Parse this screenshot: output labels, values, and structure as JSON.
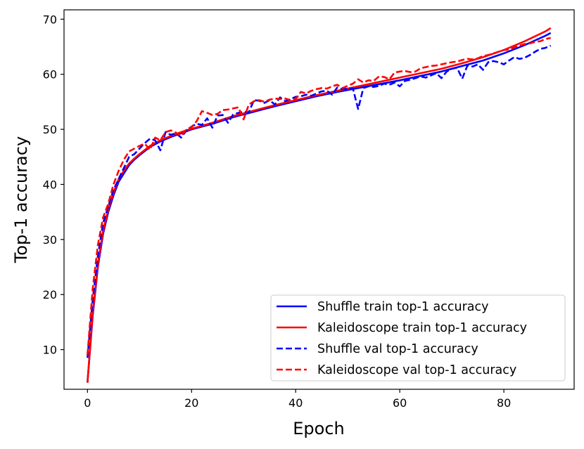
{
  "chart_data": {
    "type": "line",
    "title": "",
    "xlabel": "Epoch",
    "ylabel": "Top-1 accuracy",
    "xlim": [
      -4.5,
      93.5
    ],
    "ylim": [
      2.8,
      71.7
    ],
    "xticks": [
      0,
      20,
      40,
      60,
      80
    ],
    "yticks": [
      10,
      20,
      30,
      40,
      50,
      60,
      70
    ],
    "grid": false,
    "legend_position": "lower-right",
    "series": [
      {
        "name": "Shuffle train top-1 accuracy",
        "color": "#0000ff",
        "style": "solid",
        "x": [
          0,
          1,
          2,
          3,
          4,
          5,
          6,
          7,
          8,
          9,
          10,
          12,
          14,
          16,
          18,
          20,
          24,
          28,
          32,
          36,
          40,
          44,
          48,
          52,
          56,
          60,
          64,
          68,
          72,
          76,
          80,
          84,
          88,
          89
        ],
        "y": [
          4,
          16,
          25,
          31,
          35,
          38,
          40.5,
          42,
          43.5,
          44.5,
          45.3,
          46.8,
          47.8,
          48.6,
          49.3,
          50,
          51,
          52.2,
          53.2,
          54.2,
          55.1,
          56,
          56.8,
          57.5,
          58.2,
          58.9,
          59.7,
          60.5,
          61.5,
          62.5,
          63.8,
          65.3,
          67,
          67.5
        ]
      },
      {
        "name": "Kaleidoscope train top-1 accuracy",
        "color": "#ff0000",
        "style": "solid",
        "x": [
          0,
          1,
          2,
          3,
          4,
          5,
          6,
          7,
          8,
          9,
          10,
          12,
          14,
          16,
          18,
          20,
          24,
          28,
          32,
          36,
          40,
          44,
          48,
          52,
          56,
          60,
          64,
          68,
          72,
          76,
          80,
          84,
          88,
          89
        ],
        "y": [
          4,
          16.5,
          25.5,
          31.5,
          35.5,
          38.5,
          41,
          42.5,
          43.8,
          44.7,
          45.5,
          47,
          48,
          48.8,
          49.5,
          50.1,
          51.2,
          52.4,
          53.4,
          54.4,
          55.3,
          56.2,
          57,
          57.8,
          58.6,
          59.4,
          60.2,
          61,
          62,
          63.1,
          64.4,
          66,
          67.8,
          68.4
        ]
      },
      {
        "name": "Shuffle val top-1 accuracy",
        "color": "#0000ff",
        "style": "dashed",
        "x": [
          0,
          1,
          2,
          3,
          4,
          5,
          6,
          7,
          8,
          9,
          10,
          11,
          12,
          13,
          14,
          15,
          16,
          17,
          18,
          19,
          20,
          21,
          22,
          23,
          24,
          25,
          26,
          27,
          28,
          29,
          30,
          31,
          32,
          33,
          34,
          35,
          36,
          37,
          38,
          39,
          40,
          41,
          42,
          43,
          44,
          45,
          46,
          47,
          48,
          49,
          50,
          51,
          52,
          53,
          54,
          55,
          56,
          57,
          58,
          59,
          60,
          61,
          62,
          63,
          64,
          65,
          66,
          67,
          68,
          69,
          70,
          71,
          72,
          73,
          74,
          75,
          76,
          77,
          78,
          79,
          80,
          81,
          82,
          83,
          84,
          85,
          86,
          87,
          88,
          89
        ],
        "y": [
          8.5,
          19,
          27,
          33,
          36,
          39,
          41,
          43,
          45,
          45.5,
          46.5,
          47.5,
          48.3,
          48,
          46.2,
          49.5,
          49,
          49.3,
          48.5,
          49.8,
          50.5,
          51,
          50.8,
          52,
          50.3,
          52.5,
          52.6,
          51.2,
          52.7,
          53,
          53.2,
          53.1,
          55.3,
          55.2,
          54.8,
          55.3,
          54.5,
          55.8,
          55.1,
          55.5,
          55.9,
          56,
          56.3,
          56.1,
          56.5,
          56.9,
          57,
          56.3,
          57.6,
          57.3,
          57.4,
          57.4,
          53.7,
          57.5,
          57.8,
          57.7,
          57.9,
          58.3,
          58.1,
          58.5,
          57.8,
          58.8,
          59,
          59.3,
          59.6,
          59.4,
          59.8,
          60.2,
          59.3,
          60.5,
          61,
          61.2,
          59.2,
          61.6,
          61.4,
          61.8,
          60.8,
          62.2,
          62.4,
          62.2,
          61.8,
          62.5,
          63.1,
          62.8,
          63,
          63.5,
          64.1,
          64.6,
          64.8,
          65.2
        ]
      },
      {
        "name": "Kaleidoscope val top-1 accuracy",
        "color": "#ff0000",
        "style": "dashed",
        "x": [
          0,
          1,
          2,
          3,
          4,
          5,
          6,
          7,
          8,
          9,
          10,
          11,
          12,
          13,
          14,
          15,
          16,
          17,
          18,
          19,
          20,
          21,
          22,
          23,
          24,
          25,
          26,
          27,
          28,
          29,
          30,
          31,
          32,
          33,
          34,
          35,
          36,
          37,
          38,
          39,
          40,
          41,
          42,
          43,
          44,
          45,
          46,
          47,
          48,
          49,
          50,
          51,
          52,
          53,
          54,
          55,
          56,
          57,
          58,
          59,
          60,
          61,
          62,
          63,
          64,
          65,
          66,
          67,
          68,
          69,
          70,
          71,
          72,
          73,
          74,
          75,
          76,
          77,
          78,
          79,
          80,
          81,
          82,
          83,
          84,
          85,
          86,
          87,
          88,
          89
        ],
        "y": [
          9,
          21,
          29,
          34,
          36.5,
          40,
          42.5,
          44.5,
          46,
          46.5,
          47,
          47.4,
          46.3,
          48.5,
          48,
          49.5,
          49.8,
          49.4,
          48.8,
          50,
          50.4,
          51.5,
          53.3,
          53,
          52.6,
          52.8,
          53.5,
          53.6,
          53.8,
          54,
          51.8,
          54.5,
          55.1,
          55.3,
          55,
          55.4,
          55.6,
          55.5,
          55.6,
          55.3,
          55.5,
          56.8,
          56.5,
          57,
          57.3,
          57.5,
          57.4,
          57.8,
          58.1,
          57.5,
          57.9,
          58.3,
          59.1,
          58.5,
          58.9,
          58.8,
          59.6,
          59.5,
          59.1,
          60.3,
          60.5,
          60.6,
          60.4,
          60.5,
          61.1,
          61.3,
          61.5,
          61.6,
          61.8,
          62,
          62.2,
          62.3,
          62.6,
          62.8,
          62.7,
          62.9,
          63.3,
          63.5,
          63.8,
          64.1,
          64.4,
          64.5,
          64.9,
          65.2,
          65.5,
          65.6,
          65.9,
          66,
          66.4,
          66.6
        ]
      }
    ]
  }
}
